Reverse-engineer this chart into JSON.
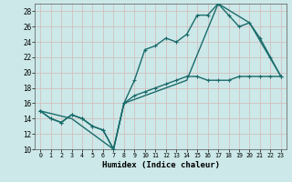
{
  "title": "",
  "xlabel": "Humidex (Indice chaleur)",
  "background_color": "#cce8e8",
  "grid_color": "#aacccc",
  "line_color": "#1a6b6b",
  "xlim": [
    -0.5,
    23.5
  ],
  "ylim": [
    10,
    29
  ],
  "xticks": [
    0,
    1,
    2,
    3,
    4,
    5,
    6,
    7,
    8,
    9,
    10,
    11,
    12,
    13,
    14,
    15,
    16,
    17,
    18,
    19,
    20,
    21,
    22,
    23
  ],
  "yticks": [
    10,
    12,
    14,
    16,
    18,
    20,
    22,
    24,
    26,
    28
  ],
  "line1_x": [
    0,
    1,
    2,
    3,
    4,
    5,
    6,
    7,
    8,
    9,
    10,
    11,
    12,
    13,
    14,
    15,
    16,
    17,
    18,
    19,
    20,
    21,
    22,
    23
  ],
  "line1_y": [
    15,
    14,
    13.5,
    14.5,
    14,
    13,
    12.5,
    10,
    16,
    17,
    17.5,
    18,
    18.5,
    19,
    19.5,
    19.5,
    19,
    19,
    19,
    19.5,
    19.5,
    19.5,
    19.5,
    19.5
  ],
  "line2_x": [
    0,
    1,
    2,
    3,
    4,
    5,
    6,
    7,
    8,
    9,
    10,
    11,
    12,
    13,
    14,
    15,
    16,
    17,
    18,
    19,
    20,
    21,
    22,
    23
  ],
  "line2_y": [
    15,
    14,
    13.5,
    14.5,
    14,
    13,
    12.5,
    10,
    16,
    19,
    23,
    23.5,
    24.5,
    24,
    25,
    27.5,
    27.5,
    29,
    27.5,
    26,
    26.5,
    24.5,
    22,
    19.5
  ],
  "line3_x": [
    0,
    3,
    7,
    8,
    14,
    17,
    20,
    23
  ],
  "line3_y": [
    15,
    14,
    10,
    16,
    19,
    29,
    26.5,
    19.5
  ],
  "markersize": 3,
  "linewidth": 1.0
}
